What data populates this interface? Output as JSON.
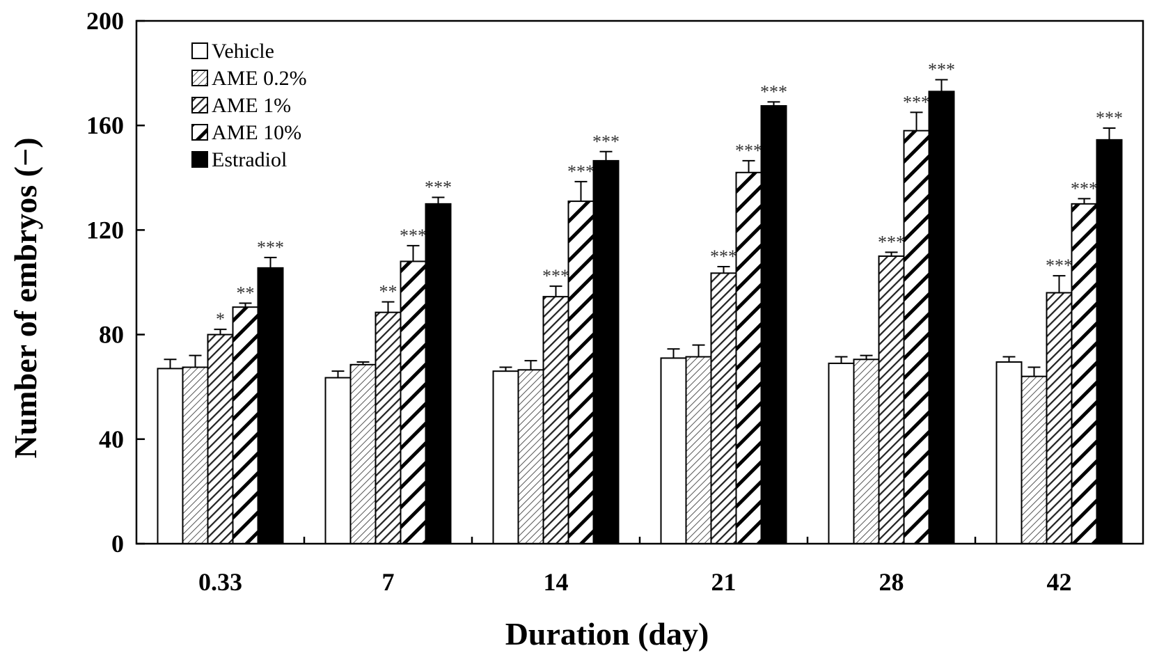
{
  "chart_data": {
    "type": "bar",
    "title": "",
    "xlabel": "Duration (day)",
    "ylabel": "Number of embryos (−)",
    "ylim": [
      0,
      200
    ],
    "yticks": [
      0,
      40,
      80,
      120,
      160,
      200
    ],
    "grid": false,
    "legend_position": "top-left",
    "categories": [
      "0.33",
      "7",
      "14",
      "21",
      "28",
      "42"
    ],
    "series": [
      {
        "name": "Vehicle",
        "pattern": "white",
        "values": [
          67,
          63.5,
          66,
          71,
          69,
          69.5
        ],
        "errors": [
          3.5,
          2.5,
          1.5,
          3.5,
          2.5,
          2
        ],
        "significance": [
          "",
          "",
          "",
          "",
          "",
          ""
        ]
      },
      {
        "name": "AME 0.2%",
        "pattern": "fine-hatch",
        "values": [
          67.5,
          68.5,
          66.5,
          71.5,
          70.5,
          64
        ],
        "errors": [
          4.5,
          1,
          3.5,
          4.5,
          1.5,
          3.5
        ],
        "significance": [
          "",
          "",
          "",
          "",
          "",
          ""
        ]
      },
      {
        "name": "AME 1%",
        "pattern": "medium-hatch",
        "values": [
          80,
          88.5,
          94.5,
          103.5,
          110,
          96
        ],
        "errors": [
          2,
          4,
          4,
          2.5,
          1.5,
          6.5
        ],
        "significance": [
          "*",
          "**",
          "***",
          "***",
          "***",
          "***"
        ]
      },
      {
        "name": "AME 10%",
        "pattern": "wide-hatch",
        "values": [
          90.5,
          108,
          131,
          142,
          158,
          130
        ],
        "errors": [
          1.5,
          6,
          7.5,
          4.5,
          7,
          2
        ],
        "significance": [
          "**",
          "***",
          "***",
          "***",
          "***",
          "***"
        ]
      },
      {
        "name": "Estradiol",
        "pattern": "black",
        "values": [
          105.5,
          130,
          146.5,
          167.5,
          173,
          154.5
        ],
        "errors": [
          4,
          2.5,
          3.5,
          1.5,
          4.5,
          4.5
        ],
        "significance": [
          "***",
          "***",
          "***",
          "***",
          "***",
          "***"
        ]
      }
    ]
  }
}
